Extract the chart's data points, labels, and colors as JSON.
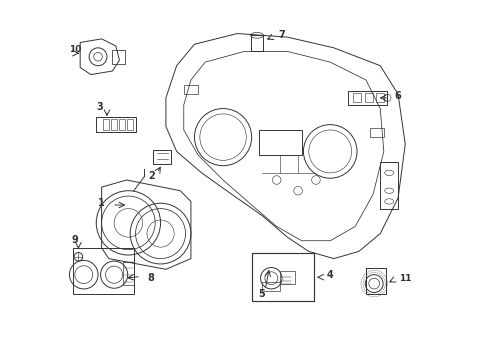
{
  "title": "",
  "bg_color": "#ffffff",
  "line_color": "#333333",
  "label_color": "#000000",
  "fig_width": 4.89,
  "fig_height": 3.6,
  "dpi": 100
}
